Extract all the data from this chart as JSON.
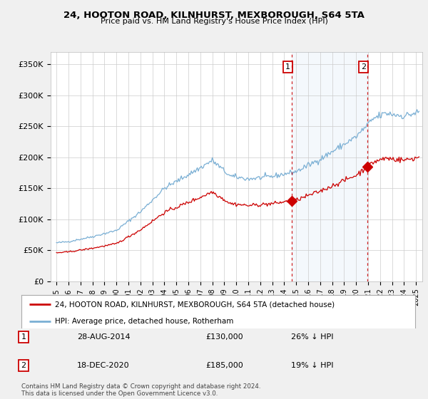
{
  "title": "24, HOOTON ROAD, KILNHURST, MEXBOROUGH, S64 5TA",
  "subtitle": "Price paid vs. HM Land Registry's House Price Index (HPI)",
  "hpi_label": "HPI: Average price, detached house, Rotherham",
  "price_label": "24, HOOTON ROAD, KILNHURST, MEXBOROUGH, S64 5TA (detached house)",
  "hpi_color": "#7aafd4",
  "hpi_fill_color": "#ddeeff",
  "price_color": "#cc0000",
  "annotation1_date": "28-AUG-2014",
  "annotation1_price": 130000,
  "annotation1_pct": "26% ↓ HPI",
  "annotation1_year": 2014.65,
  "annotation2_date": "18-DEC-2020",
  "annotation2_price": 185000,
  "annotation2_pct": "19% ↓ HPI",
  "annotation2_year": 2020.97,
  "ylabel_ticks": [
    0,
    50000,
    100000,
    150000,
    200000,
    250000,
    300000,
    350000
  ],
  "ylabel_labels": [
    "£0",
    "£50K",
    "£100K",
    "£150K",
    "£200K",
    "£250K",
    "£300K",
    "£350K"
  ],
  "xlim": [
    1994.5,
    2025.5
  ],
  "ylim": [
    0,
    370000
  ],
  "footer": "Contains HM Land Registry data © Crown copyright and database right 2024.\nThis data is licensed under the Open Government Licence v3.0.",
  "bg_color": "#f0f0f0",
  "plot_bg_color": "#ffffff",
  "grid_color": "#cccccc"
}
